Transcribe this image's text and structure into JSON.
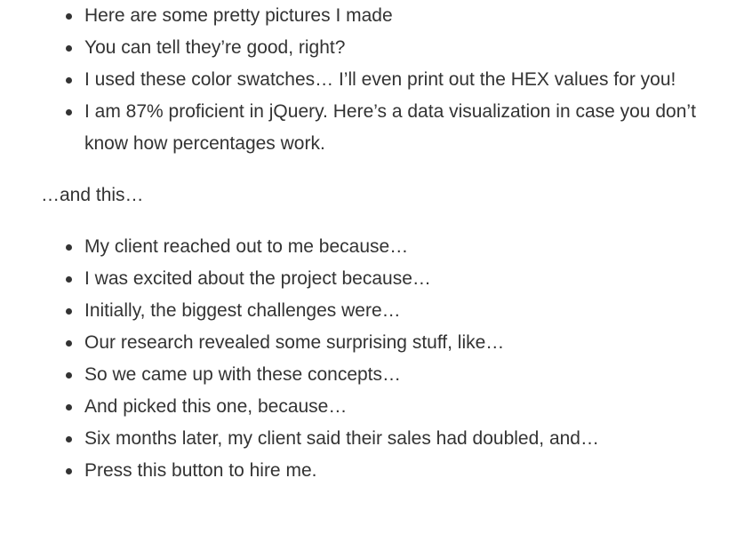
{
  "list_one": {
    "items": [
      "Here are some pretty pictures I made",
      "You can tell they’re good, right?",
      "I used these color swatches… I’ll even print out the HEX values for you!",
      "I am 87% proficient in jQuery. Here’s a data visualization in case you don’t know how percentages work."
    ]
  },
  "paragraph": {
    "text": "…and this…"
  },
  "list_two": {
    "items": [
      "My client reached out to me because…",
      "I was excited about the project because…",
      "Initially, the biggest challenges were…",
      "Our research revealed some surprising stuff, like…",
      "So we came up with these concepts…",
      "And picked this one, because…",
      "Six months later, my client said their sales had doubled, and…",
      "Press this button to hire me."
    ]
  }
}
